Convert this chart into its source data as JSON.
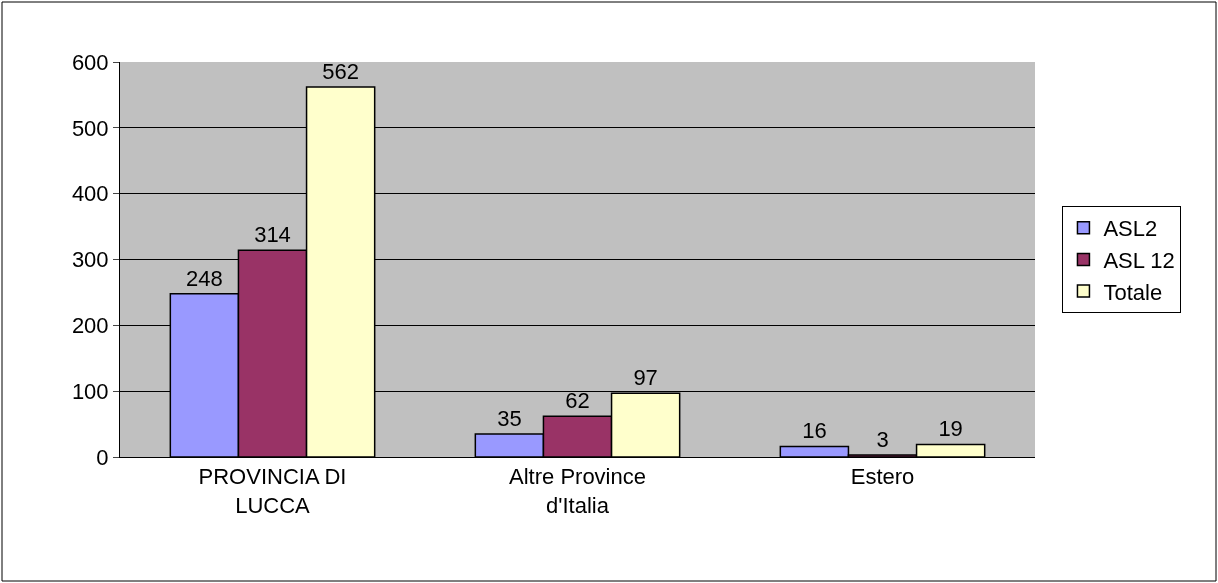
{
  "chart_data": {
    "type": "bar",
    "categories": [
      "PROVINCIA DI LUCCA",
      "Altre Province d'Italia",
      "Estero"
    ],
    "series": [
      {
        "name": "ASL2",
        "color": "#9999ff",
        "values": [
          248,
          35,
          16
        ]
      },
      {
        "name": "ASL 12",
        "color": "#993366",
        "values": [
          314,
          62,
          3
        ]
      },
      {
        "name": "Totale",
        "color": "#ffffcc",
        "values": [
          562,
          97,
          19
        ]
      }
    ],
    "ylim": [
      0,
      600
    ],
    "yticks": [
      0,
      100,
      200,
      300,
      400,
      500,
      600
    ],
    "grid": "y",
    "legend": "right",
    "data_labels": true
  }
}
